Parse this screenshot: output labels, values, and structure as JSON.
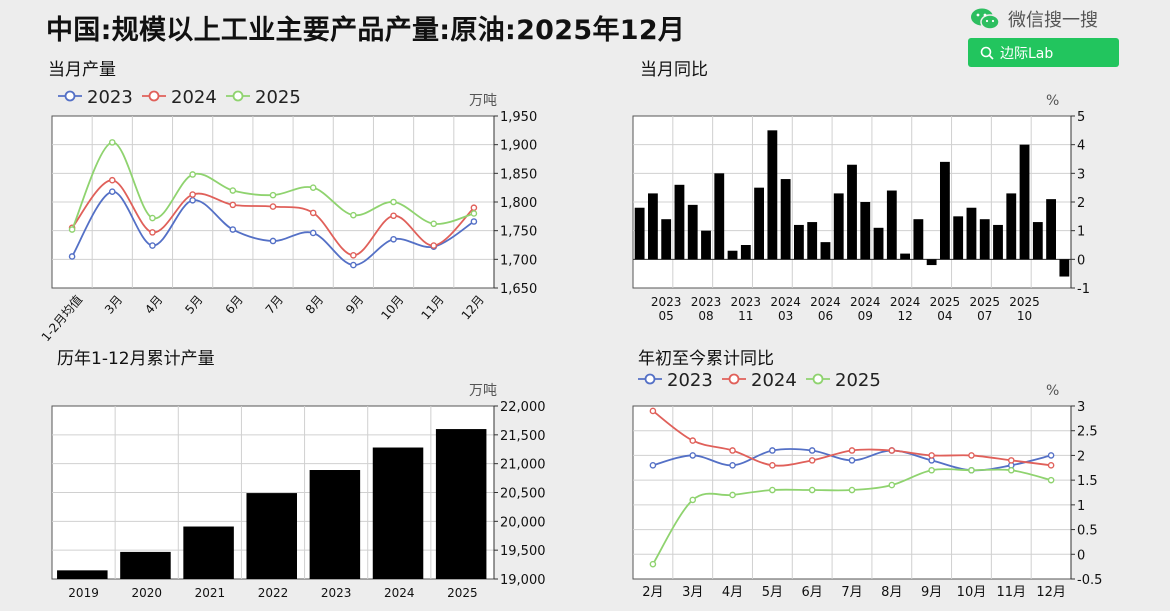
{
  "title": "中国:规模以上工业主要产品产量:原油:2025年12月",
  "header": {
    "wechat_label": "微信搜一搜",
    "search_label": "边际Lab",
    "icon": "wechat-icon",
    "search_icon": "search-icon",
    "accent": "#22c55e"
  },
  "colors": {
    "2023": "#5470c6",
    "2024": "#e0605a",
    "2025": "#8fd36f",
    "bar": "#000000"
  },
  "chart_data": [
    {
      "id": "monthly",
      "type": "line",
      "title": "当月产量",
      "ylabel": "万吨",
      "ylim": [
        1650,
        1950
      ],
      "yticks": [
        1650,
        1700,
        1750,
        1800,
        1850,
        1900,
        1950
      ],
      "categories": [
        "1-2月均值",
        "3月",
        "4月",
        "5月",
        "6月",
        "7月",
        "8月",
        "9月",
        "10月",
        "11月",
        "12月"
      ],
      "legend_position": "top-left",
      "series": [
        {
          "name": "2023",
          "values": [
            1705,
            1818,
            1724,
            1803,
            1752,
            1732,
            1746,
            1690,
            1735,
            1722,
            1766
          ]
        },
        {
          "name": "2024",
          "values": [
            1755,
            1838,
            1747,
            1813,
            1795,
            1792,
            1781,
            1707,
            1776,
            1724,
            1790
          ]
        },
        {
          "name": "2025",
          "values": [
            1752,
            1904,
            1772,
            1848,
            1820,
            1812,
            1825,
            1777,
            1800,
            1762,
            1780
          ]
        }
      ]
    },
    {
      "id": "yoy",
      "type": "bar",
      "title": "当月同比",
      "ylabel": "%",
      "ylim": [
        -1,
        5
      ],
      "yticks": [
        -1,
        0,
        1,
        2,
        3,
        4,
        5
      ],
      "x_ticks": [
        {
          "year": "2023",
          "month": "05"
        },
        {
          "year": "2023",
          "month": "08"
        },
        {
          "year": "2023",
          "month": "11"
        },
        {
          "year": "2024",
          "month": "03"
        },
        {
          "year": "2024",
          "month": "06"
        },
        {
          "year": "2024",
          "month": "09"
        },
        {
          "year": "2024",
          "month": "12"
        },
        {
          "year": "2025",
          "month": "04"
        },
        {
          "year": "2025",
          "month": "07"
        },
        {
          "year": "2025",
          "month": "10"
        }
      ],
      "values": [
        1.8,
        2.3,
        1.4,
        2.6,
        1.9,
        1.0,
        3.0,
        0.3,
        0.5,
        2.5,
        4.5,
        2.8,
        1.2,
        1.3,
        0.6,
        2.3,
        3.3,
        2.0,
        1.1,
        2.4,
        0.2,
        1.4,
        -0.2,
        3.4,
        1.5,
        1.8,
        1.4,
        1.2,
        2.3,
        4.0,
        1.3,
        2.1,
        -0.6
      ]
    },
    {
      "id": "cumulative",
      "type": "bar",
      "title": "历年1-12月累计产量",
      "ylabel": "万吨",
      "ylim": [
        19000,
        22000
      ],
      "yticks": [
        19000,
        19500,
        20000,
        20500,
        21000,
        21500,
        22000
      ],
      "categories": [
        "2019",
        "2020",
        "2021",
        "2022",
        "2023",
        "2024",
        "2025"
      ],
      "values": [
        19150,
        19470,
        19910,
        20490,
        20890,
        21280,
        21600
      ]
    },
    {
      "id": "ytd",
      "type": "line",
      "title": "年初至今累计同比",
      "ylabel": "%",
      "ylim": [
        -0.5,
        3
      ],
      "yticks": [
        -0.5,
        0,
        0.5,
        1,
        1.5,
        2,
        2.5,
        3
      ],
      "categories": [
        "2月",
        "3月",
        "4月",
        "5月",
        "6月",
        "7月",
        "8月",
        "9月",
        "10月",
        "11月",
        "12月"
      ],
      "legend_position": "top-left",
      "series": [
        {
          "name": "2023",
          "values": [
            1.8,
            2.0,
            1.8,
            2.1,
            2.1,
            1.9,
            2.1,
            1.9,
            1.7,
            1.8,
            2.0
          ]
        },
        {
          "name": "2024",
          "values": [
            2.9,
            2.3,
            2.1,
            1.8,
            1.9,
            2.1,
            2.1,
            2.0,
            2.0,
            1.9,
            1.8
          ]
        },
        {
          "name": "2025",
          "values": [
            -0.2,
            1.1,
            1.2,
            1.3,
            1.3,
            1.3,
            1.4,
            1.7,
            1.7,
            1.7,
            1.5
          ]
        }
      ]
    }
  ]
}
